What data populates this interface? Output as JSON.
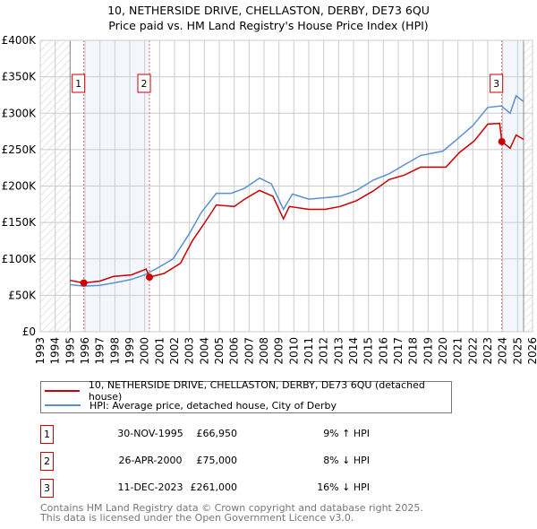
{
  "title_line1": "10, NETHERSIDE DRIVE, CHELLASTON, DERBY, DE73 6QU",
  "title_line2": "Price paid vs. HM Land Registry's House Price Index (HPI)",
  "chart_data": {
    "type": "line",
    "title": "10, NETHERSIDE DRIVE, CHELLASTON, DERBY, DE73 6QU - Price paid vs. HM Land Registry's House Price Index (HPI)",
    "xlim": [
      1993,
      2026
    ],
    "ylim": [
      0,
      400000
    ],
    "x_ticks": [
      1993,
      1994,
      1995,
      1996,
      1997,
      1998,
      1999,
      2000,
      2001,
      2002,
      2003,
      2004,
      2005,
      2006,
      2007,
      2008,
      2009,
      2010,
      2011,
      2012,
      2013,
      2014,
      2015,
      2016,
      2017,
      2018,
      2019,
      2020,
      2021,
      2022,
      2023,
      2024,
      2025,
      2026
    ],
    "y_ticks": [
      {
        "v": 0,
        "label": "£0"
      },
      {
        "v": 50000,
        "label": "£50K"
      },
      {
        "v": 100000,
        "label": "£100K"
      },
      {
        "v": 150000,
        "label": "£150K"
      },
      {
        "v": 200000,
        "label": "£200K"
      },
      {
        "v": 250000,
        "label": "£250K"
      },
      {
        "v": 300000,
        "label": "£300K"
      },
      {
        "v": 350000,
        "label": "£350K"
      },
      {
        "v": 400000,
        "label": "£400K"
      }
    ],
    "grid": true,
    "data_range": [
      1995.0,
      2025.4
    ],
    "series": [
      {
        "name": "10, NETHERSIDE DRIVE, CHELLASTON, DERBY, DE73 6QU (detached house)",
        "color": "#cc0000",
        "x": [
          1995.0,
          1995.9,
          1997.0,
          1997.9,
          1999.1,
          2000.1,
          2000.32,
          2001.3,
          2002.4,
          2003.2,
          2004.1,
          2004.8,
          2006.0,
          2006.7,
          2007.7,
          2008.6,
          2009.3,
          2009.7,
          2011.0,
          2012.1,
          2013.1,
          2014.2,
          2015.3,
          2016.4,
          2017.4,
          2018.5,
          2020.2,
          2021.1,
          2022.1,
          2023.0,
          2023.8,
          2023.94,
          2024.5,
          2024.9,
          2025.4
        ],
        "y": [
          70500,
          67000,
          69500,
          76000,
          78000,
          86000,
          75000,
          80000,
          94000,
          125000,
          152000,
          174000,
          172000,
          182000,
          194000,
          186000,
          155000,
          172000,
          168000,
          168000,
          172000,
          180000,
          193000,
          209000,
          215000,
          226000,
          226000,
          246000,
          262000,
          285000,
          286000,
          261000,
          252000,
          270000,
          264000
        ]
      },
      {
        "name": "HPI: Average price, detached house, City of Derby",
        "color": "#5b8fd4",
        "x": [
          1995.0,
          1995.9,
          1997.0,
          1998.1,
          1999.1,
          2000.0,
          2000.9,
          2001.9,
          2003.0,
          2003.8,
          2004.8,
          2005.8,
          2006.7,
          2007.7,
          2008.5,
          2009.3,
          2009.9,
          2011.0,
          2012.1,
          2013.1,
          2014.2,
          2015.3,
          2016.4,
          2017.4,
          2018.5,
          2020.0,
          2021.1,
          2022.0,
          2023.0,
          2023.9,
          2024.5,
          2024.9,
          2025.4
        ],
        "y": [
          64800,
          62600,
          63600,
          67700,
          71800,
          78000,
          88000,
          100000,
          135000,
          164000,
          190000,
          190000,
          197000,
          211000,
          203000,
          168000,
          189000,
          182000,
          184000,
          186000,
          194000,
          208000,
          217000,
          229000,
          242000,
          248000,
          267000,
          283000,
          308000,
          310000,
          300000,
          324000,
          316000
        ]
      }
    ],
    "sales": [
      {
        "label": "1",
        "x": 1995.92,
        "y": 66950
      },
      {
        "label": "2",
        "x": 2000.32,
        "y": 75000
      },
      {
        "label": "3",
        "x": 2023.94,
        "y": 261000
      }
    ]
  },
  "legend": {
    "property": "10, NETHERSIDE DRIVE, CHELLASTON, DERBY, DE73 6QU (detached house)",
    "hpi": "HPI: Average price, detached house, City of Derby"
  },
  "table": [
    {
      "num": "1",
      "date": "30-NOV-1995",
      "price": "£66,950",
      "hpi": "9% ↑ HPI"
    },
    {
      "num": "2",
      "date": "26-APR-2000",
      "price": "£75,000",
      "hpi": "8% ↓ HPI"
    },
    {
      "num": "3",
      "date": "11-DEC-2023",
      "price": "£261,000",
      "hpi": "16% ↓ HPI"
    }
  ],
  "footer_line1": "Contains HM Land Registry data © Crown copyright and database right 2025.",
  "footer_line2": "This data is licensed under the Open Government Licence v3.0."
}
